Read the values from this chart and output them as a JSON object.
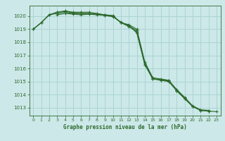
{
  "title": "Graphe pression niveau de la mer (hPa)",
  "bg_color": "#cce8e8",
  "grid_color": "#aad4d4",
  "line_color": "#2d6a2d",
  "xlim": [
    -0.5,
    23.5
  ],
  "ylim": [
    1012.4,
    1020.8
  ],
  "yticks": [
    1013,
    1014,
    1015,
    1016,
    1017,
    1018,
    1019,
    1020
  ],
  "xticks": [
    0,
    1,
    2,
    3,
    4,
    5,
    6,
    7,
    8,
    9,
    10,
    11,
    12,
    13,
    14,
    15,
    16,
    17,
    18,
    19,
    20,
    21,
    22,
    23
  ],
  "series": [
    [
      1019.0,
      1019.5,
      1020.1,
      1020.2,
      1020.3,
      1020.2,
      1020.2,
      1020.2,
      1020.15,
      1020.1,
      1020.0,
      1019.5,
      1019.3,
      1018.7,
      1016.3,
      1015.2,
      1015.15,
      1015.1,
      1014.3,
      1013.7,
      1013.1,
      1012.8,
      1012.75,
      null
    ],
    [
      1019.0,
      1019.5,
      1020.1,
      1020.3,
      1020.4,
      1020.3,
      1020.3,
      1020.3,
      1020.2,
      1020.1,
      1020.05,
      1019.5,
      1019.35,
      1019.0,
      1016.5,
      1015.3,
      1015.2,
      1015.1,
      1014.4,
      1013.8,
      1013.15,
      1012.85,
      1012.8,
      null
    ],
    [
      1019.0,
      1019.5,
      1020.1,
      1020.3,
      1020.35,
      1020.25,
      1020.2,
      1020.2,
      1020.15,
      1020.05,
      1019.95,
      1019.55,
      1019.25,
      1018.9,
      1016.4,
      1015.25,
      1015.1,
      1015.05,
      1014.35,
      1013.75,
      1013.12,
      1012.82,
      1012.77,
      null
    ],
    [
      null,
      null,
      null,
      1020.1,
      1020.2,
      1020.15,
      1020.1,
      1020.15,
      1020.1,
      1020.05,
      1020.0,
      1019.5,
      1019.2,
      1018.8,
      1016.3,
      1015.2,
      1015.1,
      1015.0,
      1014.3,
      1013.7,
      1013.1,
      1012.8,
      1012.75,
      1012.7
    ]
  ]
}
